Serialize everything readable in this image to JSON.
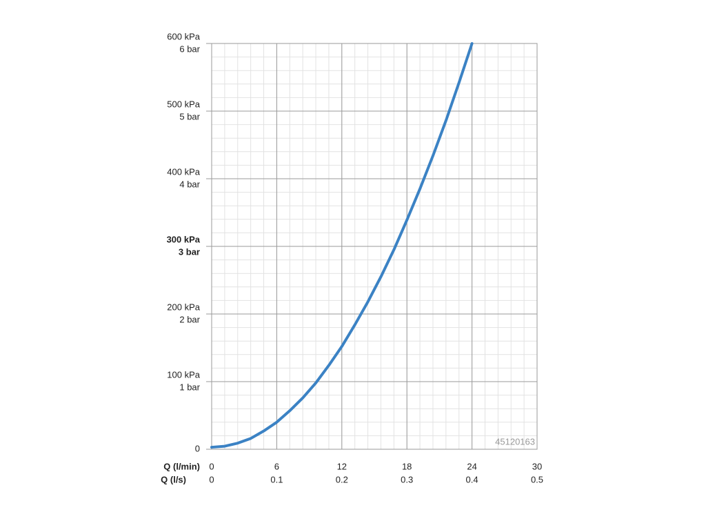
{
  "chart_data": {
    "type": "line",
    "xlabel": "Q (l/min)",
    "x2label": "Q (l/s)",
    "xlim": [
      0,
      30
    ],
    "xticks": [
      0,
      6,
      12,
      18,
      24,
      30
    ],
    "x2lim": [
      0,
      0.5
    ],
    "x2ticks": [
      0,
      0.1,
      0.2,
      0.3,
      0.4,
      0.5
    ],
    "ylim": [
      0,
      600
    ],
    "yticks": [
      0,
      {
        "value": 100,
        "label": "100 kPa"
      },
      {
        "value": 200,
        "label": "200 kPa"
      },
      {
        "value": 300,
        "label": "300 kPa"
      },
      {
        "value": 400,
        "label": "400 kPa"
      },
      {
        "value": 500,
        "label": "500 kPa"
      },
      {
        "value": 600,
        "label": "600 kPa"
      }
    ],
    "y2lim": [
      0,
      6
    ],
    "y2ticks": [
      {
        "value": 1,
        "label": "1 bar"
      },
      {
        "value": 2,
        "label": "2 bar"
      },
      {
        "value": 3,
        "label": "3 bar"
      },
      {
        "value": 4,
        "label": "4 bar"
      },
      {
        "value": 5,
        "label": "5 bar"
      },
      {
        "value": 6,
        "label": "6 bar"
      }
    ],
    "highlight_tick_value": 300,
    "grid": true,
    "minor_grid": {
      "x": 1.2,
      "y": 20
    },
    "annotation": "45120163",
    "x": [
      0,
      1.2,
      2.4,
      3.6,
      4.8,
      6,
      7.2,
      8.4,
      9.6,
      10.8,
      12,
      13.2,
      14.4,
      15.6,
      16.8,
      18,
      19.2,
      20.4,
      21.6,
      22.8,
      24
    ],
    "series": [
      {
        "color": "#3b82c4",
        "values": [
          3,
          4.5,
          9,
          16,
          27,
          40,
          57,
          76,
          98,
          124,
          152,
          184,
          218,
          255,
          295,
          339,
          385,
          434,
          486,
          542,
          600
        ]
      }
    ]
  }
}
